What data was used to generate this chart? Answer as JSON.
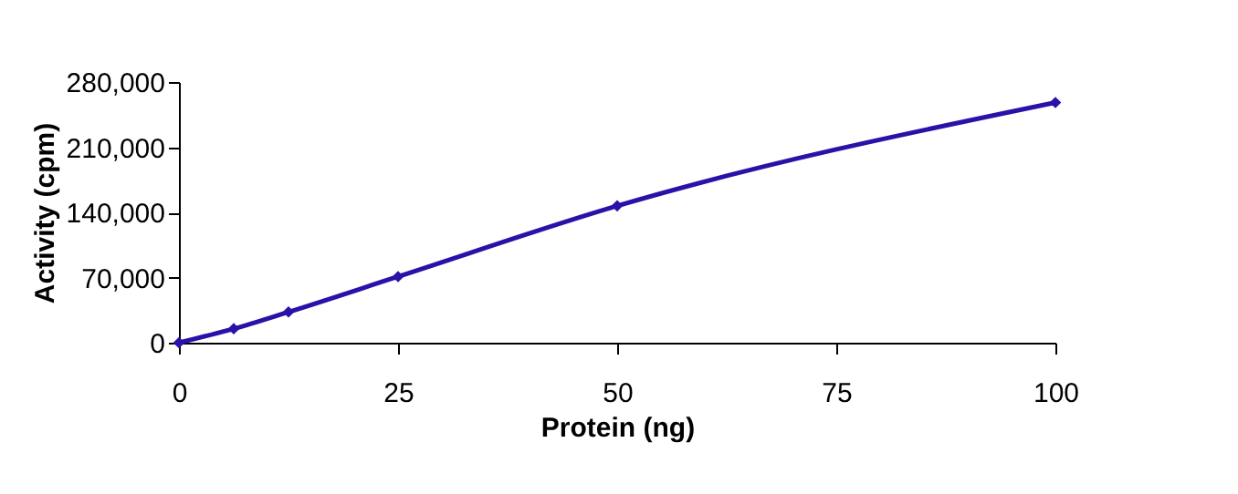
{
  "chart_data": {
    "type": "line",
    "xlabel": "Protein (ng)",
    "ylabel": "Activity (cpm)",
    "x": [
      0,
      6.25,
      12.5,
      25,
      50,
      100
    ],
    "series": [
      {
        "color": "#2a12a8",
        "values": [
          0,
          15000,
          33000,
          71000,
          147000,
          258000
        ]
      }
    ],
    "xlim": [
      0,
      100
    ],
    "xticks": [
      0,
      25,
      50,
      75,
      100
    ],
    "ylim": [
      0,
      280000
    ],
    "yticks": [
      0,
      {
        "value": 70000,
        "label": "70,000"
      },
      {
        "value": 140000,
        "label": "140,000"
      },
      {
        "value": 210000,
        "label": "210,000"
      },
      {
        "value": 280000,
        "label": "280,000"
      }
    ],
    "grid": false,
    "marker": "diamond",
    "line_style": "solid"
  }
}
